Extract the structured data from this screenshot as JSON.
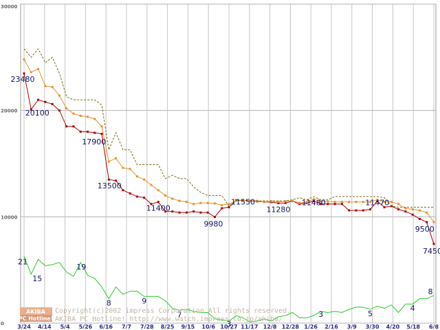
{
  "chart_data": {
    "type": "line",
    "ylim": [
      0,
      30000
    ],
    "y_ticks": [
      0,
      10000,
      20000,
      30000
    ],
    "y_tick_labels": [
      "0",
      "10000",
      "20000",
      "30000"
    ],
    "x_tick_labels": [
      "3/24",
      "4/14",
      "5/4",
      "5/26",
      "6/16",
      "7/7",
      "7/28",
      "8/25",
      "9/15",
      "10/6",
      "10/27",
      "11/17",
      "12/8",
      "12/28",
      "1/26",
      "2/16",
      "3/9",
      "3/30",
      "4/20",
      "5/18",
      "6/8"
    ],
    "grid": true,
    "series": [
      {
        "name": "min-price",
        "color": "#aa0000",
        "marker": "square",
        "values": [
          23480,
          20100,
          21000,
          20800,
          20600,
          20000,
          18500,
          18500,
          18000,
          18000,
          17900,
          17800,
          13500,
          13400,
          12500,
          12200,
          11900,
          11800,
          11200,
          11400,
          10500,
          10500,
          10400,
          10400,
          10500,
          10400,
          10400,
          9980,
          10800,
          10900,
          11550,
          11550,
          11500,
          11450,
          11400,
          11380,
          11280,
          11300,
          11480,
          11200,
          11300,
          11480,
          11200,
          11200,
          11200,
          11200,
          10600,
          10600,
          10600,
          10700,
          11470,
          10900,
          11000,
          10700,
          10500,
          10200,
          9800,
          9500,
          7450
        ]
      },
      {
        "name": "avg-price",
        "color": "#e8902a",
        "marker": "square",
        "values": [
          24800,
          23600,
          23900,
          22300,
          22200,
          21400,
          20200,
          19700,
          19500,
          19400,
          19200,
          18500,
          15200,
          15500,
          14600,
          14500,
          13800,
          13500,
          13000,
          12500,
          12000,
          11700,
          11500,
          11400,
          11200,
          11300,
          11300,
          11250,
          11100,
          11200,
          11500,
          11550,
          11500,
          11500,
          11400,
          11450,
          11400,
          11450,
          11500,
          11300,
          11400,
          11650,
          11450,
          11450,
          11400,
          11400,
          11400,
          11400,
          11400,
          11400,
          11600,
          11400,
          11400,
          11200,
          10800,
          10700,
          10600,
          10400,
          9500
        ]
      },
      {
        "name": "max-price",
        "color": "#7a6a10",
        "dashed": true,
        "values": [
          25800,
          25000,
          25800,
          24500,
          25000,
          23500,
          21300,
          21000,
          21000,
          21000,
          21000,
          20500,
          16300,
          17900,
          16300,
          16300,
          14900,
          14900,
          14900,
          14900,
          13600,
          13900,
          13600,
          13600,
          12800,
          12300,
          12000,
          12000,
          12000,
          11000,
          11550,
          11550,
          11500,
          11500,
          11500,
          11500,
          11500,
          11500,
          11600,
          11800,
          11600,
          11900,
          11600,
          11600,
          11900,
          11900,
          11900,
          11900,
          11900,
          11900,
          11900,
          11800,
          11000,
          10900,
          10900,
          10900,
          10900,
          10900,
          10900
        ]
      },
      {
        "name": "shop-count",
        "color": "#22cc22",
        "scale_max": 30000,
        "values": [
          6300,
          4600,
          6000,
          5400,
          5500,
          5700,
          4800,
          4400,
          5700,
          4500,
          4200,
          3400,
          2300,
          3400,
          2700,
          3000,
          3000,
          2500,
          2500,
          2500,
          2100,
          1400,
          1200,
          1300,
          1100,
          1000,
          1000,
          400,
          300,
          200,
          700,
          500,
          100,
          200,
          400,
          200,
          600,
          700,
          1000,
          500,
          500,
          700,
          1100,
          1000,
          1100,
          1000,
          1300,
          1500,
          1500,
          1300,
          1600,
          1400,
          1700,
          1000,
          1800,
          1800,
          2300,
          2300,
          2600
        ]
      }
    ],
    "point_labels": [
      {
        "index": 0,
        "value": 23480,
        "text": "23480"
      },
      {
        "index": 1,
        "value": 20100,
        "text": "20100"
      },
      {
        "index": 10,
        "value": 17900,
        "text": "17900"
      },
      {
        "index": 12,
        "value": 13500,
        "text": "13500"
      },
      {
        "index": 19,
        "value": 11400,
        "text": "11400"
      },
      {
        "index": 27,
        "value": 9980,
        "text": "9980"
      },
      {
        "index": 31,
        "value": 11550,
        "text": "11550"
      },
      {
        "index": 36,
        "value": 11280,
        "text": "11280"
      },
      {
        "index": 41,
        "value": 11480,
        "text": "11480"
      },
      {
        "index": 50,
        "value": 11470,
        "text": "11470"
      },
      {
        "index": 57,
        "value": 9500,
        "text": "9500"
      },
      {
        "index": 58,
        "value": 7450,
        "text": "7450"
      }
    ],
    "count_labels": [
      {
        "index": 0,
        "value": 21,
        "text": "21"
      },
      {
        "index": 1,
        "value": 15,
        "text": "15"
      },
      {
        "index": 8,
        "value": 19,
        "text": "19"
      },
      {
        "index": 12,
        "value": 8,
        "text": "8"
      },
      {
        "index": 17,
        "value": 9,
        "text": "9"
      },
      {
        "index": 22,
        "value": 7,
        "text": "7"
      },
      {
        "index": 29,
        "value": 3,
        "text": "3"
      },
      {
        "index": 42,
        "value": 3,
        "text": "3"
      },
      {
        "index": 49,
        "value": 5,
        "text": "5"
      },
      {
        "index": 55,
        "value": 4,
        "text": "4"
      },
      {
        "index": 58,
        "value": 8,
        "text": "8"
      }
    ]
  },
  "watermark": {
    "logo_top": "AKIBA",
    "logo_bottom": "PC Hotline!",
    "line1": "Copyright(c)2002 impress Corporation All rights reserved.",
    "line2": "AKIBA PC Hotline! http://www.watch.impress.co.jp/akiba/"
  }
}
